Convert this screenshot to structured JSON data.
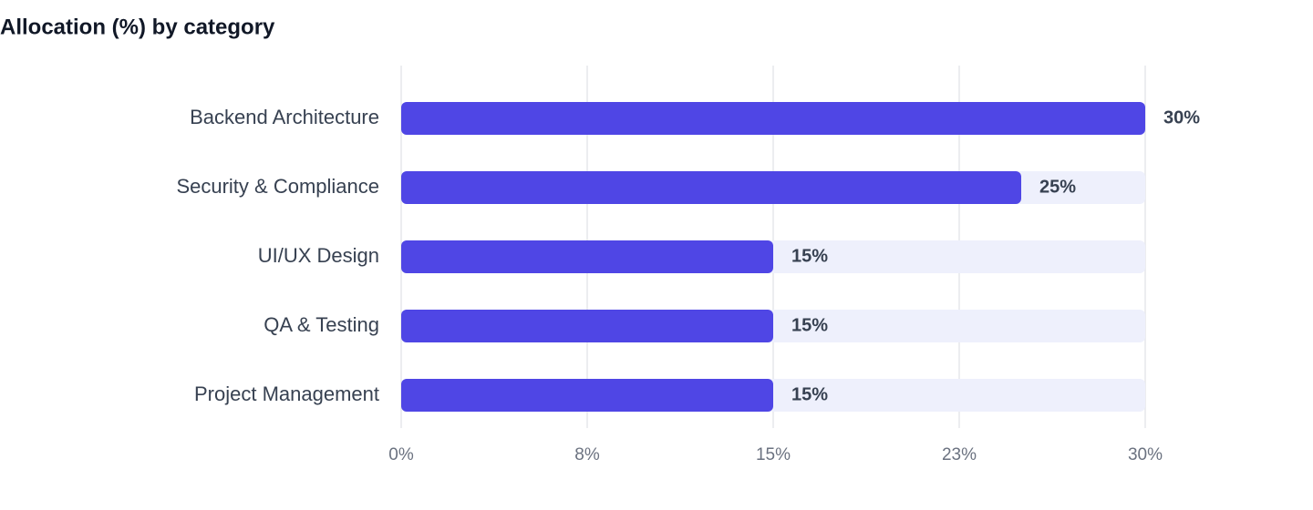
{
  "chart_data": {
    "type": "bar",
    "orientation": "horizontal",
    "title": "Allocation (%) by category",
    "categories": [
      "Backend Architecture",
      "Security & Compliance",
      "UI/UX Design",
      "QA & Testing",
      "Project Management"
    ],
    "values": [
      30,
      25,
      15,
      15,
      15
    ],
    "value_labels": [
      "30%",
      "25%",
      "15%",
      "15%",
      "15%"
    ],
    "color": "#4f46e5",
    "xlim": [
      0,
      30
    ],
    "xticks": [
      {
        "value": 0,
        "label": "0%"
      },
      {
        "value": 7.5,
        "label": "8%"
      },
      {
        "value": 15,
        "label": "15%"
      },
      {
        "value": 22.5,
        "label": "23%"
      },
      {
        "value": 30,
        "label": "30%"
      }
    ],
    "grid": true
  }
}
